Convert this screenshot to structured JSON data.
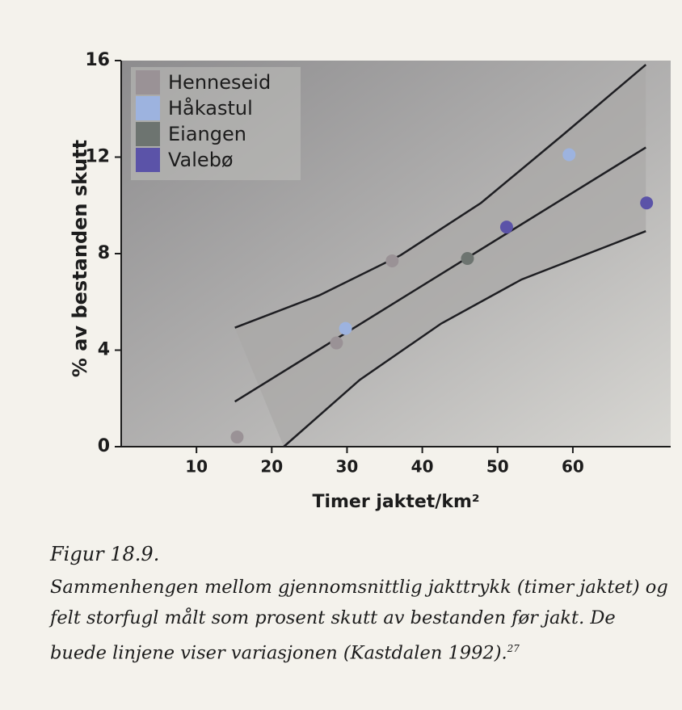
{
  "chart_data": {
    "type": "scatter",
    "xlabel": "Timer jaktet/km²",
    "ylabel": "% av bestanden skutt",
    "xlim": [
      0,
      73
    ],
    "ylim": [
      0,
      16
    ],
    "xticks": [
      10,
      20,
      30,
      40,
      50,
      60
    ],
    "yticks": [
      0,
      4,
      8,
      12,
      16
    ],
    "legend": "top-left",
    "series": [
      {
        "name": "Henneseid",
        "color": "#9a9296",
        "x": [
          15.4,
          28.6,
          36
        ],
        "values": [
          0.4,
          4.3,
          7.7
        ]
      },
      {
        "name": "Håkastul",
        "color": "#9db3df",
        "x": [
          29.8,
          59.5
        ],
        "values": [
          4.9,
          12.1
        ]
      },
      {
        "name": "Eiangen",
        "color": "#6d7470",
        "x": [
          46
        ],
        "values": [
          7.8
        ]
      },
      {
        "name": "Valebø",
        "color": "#5b53a8",
        "x": [
          51.2,
          69.8
        ],
        "values": [
          9.1,
          10.1
        ]
      }
    ],
    "curves": [
      {
        "color": "#1e1e22",
        "x": [
          15.1,
          69.7
        ],
        "values": [
          1.87,
          12.4
        ]
      },
      {
        "color": "#1e1e22",
        "x": [
          15.1,
          26.3,
          37.1,
          47.8,
          58.6,
          69.7
        ],
        "values": [
          4.93,
          6.27,
          7.93,
          10.1,
          12.9,
          15.83
        ]
      },
      {
        "color": "#1e1e22",
        "x": [
          21.6,
          31.7,
          42.5,
          53.2,
          69.7
        ],
        "values": [
          0,
          2.77,
          5.1,
          6.93,
          8.93
        ]
      }
    ]
  },
  "figure": {
    "title": "Figur 18.9.",
    "caption": "Sammenhengen mellom gjennomsnittlig jakttrykk (timer jaktet) og felt storfugl målt som prosent skutt av bestanden før jakt. De buede linjene viser variasjonen (Kastdalen 1992).",
    "footnote_ref": "27"
  }
}
